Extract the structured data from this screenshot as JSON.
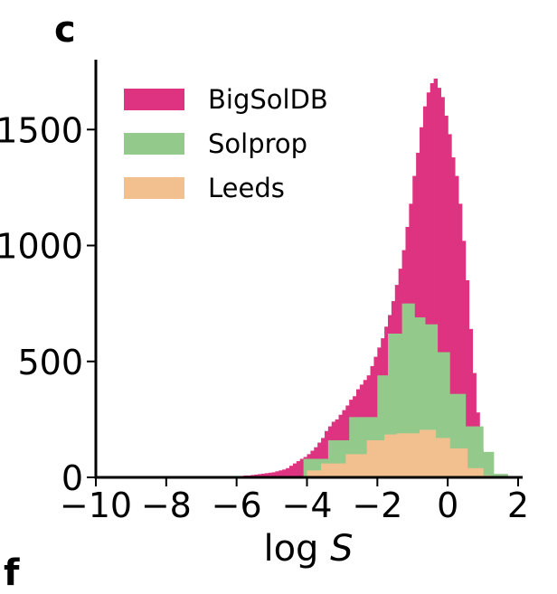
{
  "panel_label": "c",
  "next_panel_label": "f",
  "colors": {
    "BigSolDB": "#dd3380",
    "Solprop": "#93c98b",
    "Leeds": "#f2c08f",
    "axis": "#000000"
  },
  "chart_data": {
    "type": "bar",
    "subtype": "histogram-overlay",
    "title": "",
    "xlabel_prefix": "log",
    "xlabel_var": "S",
    "ylabel": "",
    "xlim": [
      -10,
      2.1
    ],
    "ylim": [
      0,
      1730
    ],
    "grid": false,
    "legend_position": "top-left",
    "x_ticks": [
      -10,
      -8,
      -6,
      -4,
      -2,
      0,
      2
    ],
    "x_tick_labels": [
      "−10",
      "−8",
      "−6",
      "−4",
      "−2",
      "0",
      "2"
    ],
    "y_ticks": [
      0,
      500,
      1000,
      1500
    ],
    "y_tick_labels": [
      "0",
      "500",
      "1000",
      "1500"
    ],
    "series": [
      {
        "name": "BigSolDB",
        "color": "#dd3380",
        "bin_edges_start": -6.2,
        "bin_width": 0.1,
        "counts": [
          3,
          4,
          5,
          6,
          8,
          8,
          10,
          12,
          14,
          16,
          18,
          20,
          22,
          26,
          30,
          34,
          40,
          50,
          60,
          70,
          80,
          88,
          100,
          115,
          130,
          150,
          170,
          200,
          220,
          240,
          250,
          270,
          290,
          310,
          335,
          350,
          380,
          400,
          420,
          440,
          480,
          520,
          560,
          600,
          650,
          700,
          760,
          830,
          900,
          980,
          1080,
          1180,
          1300,
          1400,
          1510,
          1600,
          1660,
          1700,
          1720,
          1680,
          1640,
          1560,
          1480,
          1380,
          1300,
          1180,
          1020,
          850,
          640,
          450,
          280,
          120,
          40,
          15,
          5
        ]
      },
      {
        "name": "Solprop",
        "color": "#93c98b",
        "bins": [
          {
            "x0": -4.1,
            "x1": -3.4,
            "count": 80
          },
          {
            "x0": -3.4,
            "x1": -2.8,
            "count": 160
          },
          {
            "x0": -2.8,
            "x1": -2.0,
            "count": 260
          },
          {
            "x0": -2.0,
            "x1": -1.7,
            "count": 440
          },
          {
            "x0": -1.7,
            "x1": -1.3,
            "count": 620
          },
          {
            "x0": -1.3,
            "x1": -0.95,
            "count": 750
          },
          {
            "x0": -0.95,
            "x1": -0.65,
            "count": 690
          },
          {
            "x0": -0.65,
            "x1": -0.3,
            "count": 660
          },
          {
            "x0": -0.3,
            "x1": 0.05,
            "count": 540
          },
          {
            "x0": 0.05,
            "x1": 0.5,
            "count": 360
          },
          {
            "x0": 0.5,
            "x1": 1.0,
            "count": 220
          },
          {
            "x0": 1.0,
            "x1": 1.3,
            "count": 110
          },
          {
            "x0": 1.3,
            "x1": 1.7,
            "count": 15
          }
        ]
      },
      {
        "name": "Leeds",
        "color": "#f2c08f",
        "bins": [
          {
            "x0": -4.0,
            "x1": -3.6,
            "count": 30
          },
          {
            "x0": -3.6,
            "x1": -2.9,
            "count": 60
          },
          {
            "x0": -2.9,
            "x1": -2.3,
            "count": 100
          },
          {
            "x0": -2.3,
            "x1": -1.8,
            "count": 160
          },
          {
            "x0": -1.8,
            "x1": -1.45,
            "count": 185
          },
          {
            "x0": -1.45,
            "x1": -0.8,
            "count": 190
          },
          {
            "x0": -0.8,
            "x1": -0.35,
            "count": 205
          },
          {
            "x0": -0.35,
            "x1": 0.05,
            "count": 170
          },
          {
            "x0": 0.05,
            "x1": 0.55,
            "count": 125
          },
          {
            "x0": 0.55,
            "x1": 1.0,
            "count": 40
          },
          {
            "x0": 1.0,
            "x1": 1.2,
            "count": 8
          }
        ]
      }
    ],
    "legend": [
      {
        "label": "BigSolDB",
        "color": "#dd3380"
      },
      {
        "label": "Solprop",
        "color": "#93c98b"
      },
      {
        "label": "Leeds",
        "color": "#f2c08f"
      }
    ]
  }
}
